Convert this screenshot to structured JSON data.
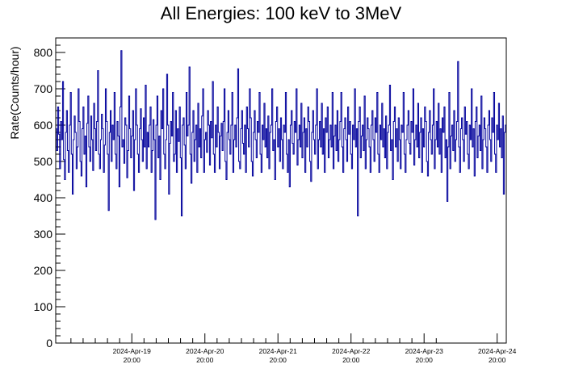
{
  "chart_data": {
    "type": "line",
    "title": "All Energies:  100 keV to 3MeV",
    "xlabel": "",
    "ylabel": "Rate(Counts/hour)",
    "ylim": [
      0,
      840
    ],
    "xlim": [
      "2024-Apr-18 19:00",
      "2024-Apr-24 23:00"
    ],
    "x_ticks": [
      {
        "date": "2024-Apr-19",
        "time": "20:00"
      },
      {
        "date": "2024-Apr-20",
        "time": "20:00"
      },
      {
        "date": "2024-Apr-21",
        "time": "20:00"
      },
      {
        "date": "2024-Apr-22",
        "time": "20:00"
      },
      {
        "date": "2024-Apr-23",
        "time": "20:00"
      },
      {
        "date": "2024-Apr-24",
        "time": "20:00"
      }
    ],
    "y_ticks": [
      0,
      100,
      200,
      300,
      400,
      500,
      600,
      700,
      800
    ],
    "grid": false,
    "legend": "none",
    "series": [
      {
        "color": "#00009b",
        "sampling": "hourly",
        "approx_mean": 555,
        "approx_range": [
          340,
          805
        ],
        "values": [
          590,
          530,
          650,
          575,
          480,
          610,
          560,
          720,
          505,
          450,
          580,
          640,
          530,
          470,
          600,
          690,
          520,
          410,
          560,
          625,
          580,
          480,
          540,
          700,
          610,
          500,
          460,
          590,
          650,
          520,
          570,
          430,
          605,
          680,
          540,
          500,
          625,
          560,
          475,
          660,
          590,
          530,
          610,
          750,
          520,
          480,
          560,
          630,
          590,
          470,
          545,
          700,
          610,
          520,
          365,
          580,
          640,
          500,
          600,
          560,
          690,
          520,
          480,
          610,
          570,
          430,
          650,
          805,
          540,
          560,
          495,
          620,
          600,
          455,
          530,
          680,
          590,
          510,
          570,
          640,
          420,
          560,
          700,
          600,
          520,
          470,
          590,
          645,
          560,
          500,
          620,
          540,
          710,
          480,
          580,
          540,
          600,
          650,
          470,
          530,
          615,
          560,
          340,
          600,
          680,
          510,
          570,
          450,
          640,
          590,
          700,
          520,
          480,
          560,
          740,
          600,
          410,
          550,
          610,
          570,
          690,
          500,
          520,
          640,
          470,
          590,
          555,
          650,
          510,
          350,
          600,
          620,
          545,
          480,
          690,
          570,
          600,
          760,
          520,
          440,
          580,
          640,
          500,
          560,
          600,
          470,
          660,
          540,
          590,
          510,
          625,
          700,
          470,
          560,
          580,
          525,
          640,
          600,
          490,
          610,
          565,
          720,
          520,
          470,
          600,
          540,
          650,
          580,
          480,
          570,
          605,
          530,
          610,
          700,
          500,
          450,
          580,
          640,
          560,
          520,
          600,
          690,
          470,
          560,
          600,
          540,
          620,
          755,
          500,
          480,
          590,
          640,
          550,
          520,
          600,
          470,
          650,
          590,
          540,
          700,
          620,
          500,
          460,
          580,
          640,
          560,
          510,
          610,
          580,
          690,
          520,
          470,
          600,
          560,
          660,
          540,
          590,
          510,
          625,
          480,
          580,
          600,
          700,
          530,
          560,
          450,
          610,
          650,
          540,
          590,
          500,
          620,
          560,
          480,
          600,
          580,
          690,
          520,
          470,
          560,
          430,
          600,
          640,
          550,
          520,
          610,
          580,
          700,
          490,
          560,
          600,
          540,
          660,
          510,
          580,
          620,
          470,
          590,
          540,
          650,
          610,
          500,
          445,
          580,
          640,
          560,
          520,
          600,
          700,
          480,
          560,
          610,
          540,
          660,
          520,
          590,
          470,
          620,
          580,
          650,
          510,
          560,
          600,
          540,
          690,
          480,
          570,
          600,
          530,
          640,
          500,
          560,
          610,
          690,
          540,
          470,
          590,
          620,
          560,
          500,
          650,
          575,
          610,
          520,
          480,
          600,
          560,
          700,
          540,
          590,
          350,
          610,
          650,
          510,
          570,
          600,
          530,
          680,
          480,
          560,
          620,
          590,
          540,
          470,
          600,
          640,
          560,
          500,
          620,
          580,
          690,
          520,
          470,
          600,
          560,
          660,
          540,
          590,
          510,
          625,
          480,
          580,
          600,
          710,
          530,
          560,
          450,
          610,
          650,
          540,
          590,
          500,
          620,
          560,
          480,
          600,
          580,
          690,
          520,
          470,
          560,
          600,
          640,
          550,
          520,
          610,
          580,
          700,
          490,
          560,
          600,
          540,
          660,
          510,
          580,
          620,
          470,
          590,
          540,
          650,
          610,
          500,
          460,
          580,
          640,
          560,
          520,
          600,
          700,
          480,
          560,
          610,
          540,
          660,
          520,
          590,
          470,
          620,
          580,
          650,
          510,
          560,
          390,
          540,
          690,
          480,
          570,
          600,
          530,
          640,
          500,
          560,
          610,
          775,
          540,
          470,
          590,
          620,
          560,
          500,
          650,
          575,
          610,
          520,
          480,
          600,
          560,
          700,
          540,
          590,
          460,
          610,
          650,
          510,
          570,
          600,
          530,
          680,
          480,
          560,
          620,
          590,
          540,
          470,
          600,
          640,
          560,
          500,
          620,
          580,
          690,
          520,
          470,
          600,
          560,
          660,
          540,
          590,
          510,
          625,
          410,
          580,
          600
        ]
      }
    ]
  }
}
